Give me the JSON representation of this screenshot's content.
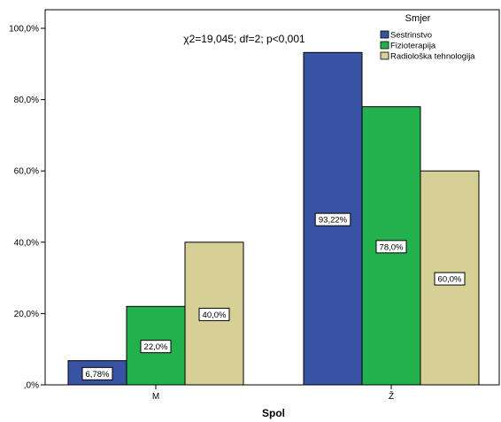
{
  "chart_data": {
    "type": "bar",
    "categories": [
      "M",
      "Ž"
    ],
    "series": [
      {
        "name": "Sestrinstvo",
        "values": [
          6.78,
          93.22
        ],
        "labels": [
          "6,78%",
          "93,22%"
        ],
        "color": "#3953a4"
      },
      {
        "name": "Fizioterapija",
        "values": [
          22.0,
          78.0
        ],
        "labels": [
          "22,0%",
          "78,0%"
        ],
        "color": "#22b14c"
      },
      {
        "name": "Radiološka tehnologija",
        "values": [
          40.0,
          60.0
        ],
        "labels": [
          "40,0%",
          "60,0%"
        ],
        "color": "#d6cf96"
      }
    ],
    "xlabel": "Spol",
    "ylabel": "",
    "ylim": [
      0,
      100
    ],
    "yticks": [
      0,
      20,
      40,
      60,
      80,
      100
    ],
    "ytick_labels": [
      ",0%",
      "20,0%",
      "40,0%",
      "60,0%",
      "80,0%",
      "100,0%"
    ],
    "annotation": "χ2=19,045; df=2; p<0,001",
    "legend": {
      "title": "Smjer",
      "position": "top-right"
    },
    "grid": false
  }
}
